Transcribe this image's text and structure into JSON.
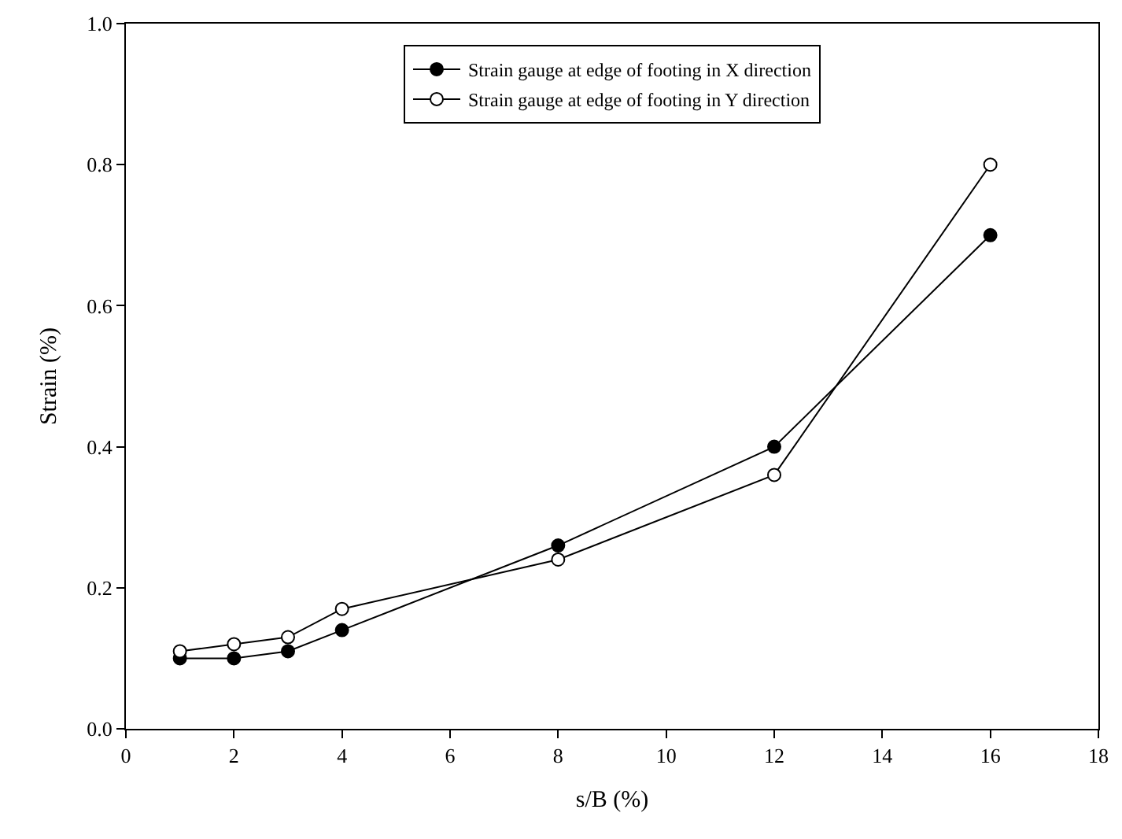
{
  "chart_data": {
    "type": "line",
    "xlabel": "s/B (%)",
    "ylabel": "Strain (%)",
    "x": [
      1,
      2,
      3,
      4,
      8,
      12,
      16
    ],
    "series": [
      {
        "name": "Strain gauge at edge of footing in X direction",
        "color": "#000000",
        "values": [
          0.1,
          0.1,
          0.11,
          0.14,
          0.26,
          0.4,
          0.7
        ]
      },
      {
        "name": "Strain gauge at edge of footing in Y direction",
        "color": "#000000",
        "values": [
          0.11,
          0.12,
          0.13,
          0.17,
          0.24,
          0.36,
          0.8
        ]
      }
    ],
    "xlim": [
      0,
      18
    ],
    "xticks": [
      0,
      2,
      4,
      6,
      8,
      10,
      12,
      14,
      16,
      18
    ],
    "ylim": [
      0,
      1.0
    ],
    "yticks": [
      {
        "value": 0,
        "label": "0.0"
      },
      {
        "value": 0.2,
        "label": "0.2"
      },
      {
        "value": 0.4,
        "label": "0.4"
      },
      {
        "value": 0.6,
        "label": "0.6"
      },
      {
        "value": 0.8,
        "label": "0.8"
      },
      {
        "value": 1.0,
        "label": "1.0"
      }
    ],
    "legend": "top",
    "marker": "circle",
    "line_style": "solid"
  }
}
